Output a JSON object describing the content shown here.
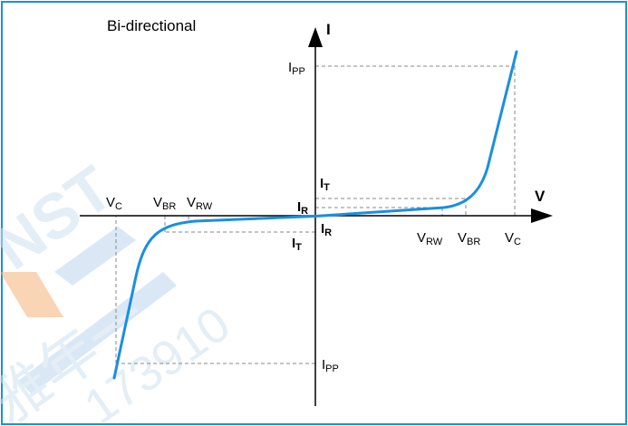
{
  "title": "Bi-directional",
  "axes": {
    "current_label": "I",
    "voltage_label": "V"
  },
  "labels": {
    "ipp_pos": {
      "main": "I",
      "sub": "PP"
    },
    "ipp_neg": {
      "main": "I",
      "sub": "PP"
    },
    "it_pos": {
      "main": "I",
      "sub": "T"
    },
    "ir_pos": {
      "main": "I",
      "sub": "R"
    },
    "ir_neg": {
      "main": "I",
      "sub": "R"
    },
    "it_neg": {
      "main": "I",
      "sub": "T"
    },
    "vc_neg": {
      "main": "V",
      "sub": "C"
    },
    "vbr_neg": {
      "main": "V",
      "sub": "BR"
    },
    "vrw_neg": {
      "main": "V",
      "sub": "RW"
    },
    "vrw_pos": {
      "main": "V",
      "sub": "RW"
    },
    "vbr_pos": {
      "main": "V",
      "sub": "BR"
    },
    "vc_pos": {
      "main": "V",
      "sub": "C"
    }
  },
  "watermark": {
    "logo_text": "NST",
    "cjk_text": "雅年一",
    "number_text": "173910"
  },
  "colors": {
    "curve": "#1a8fe0",
    "frame": "#1a8fe0",
    "axis": "#000000",
    "dashed": "#888888",
    "watermark_orange": "#f5b27a",
    "watermark_blue": "#bcd7ef"
  }
}
